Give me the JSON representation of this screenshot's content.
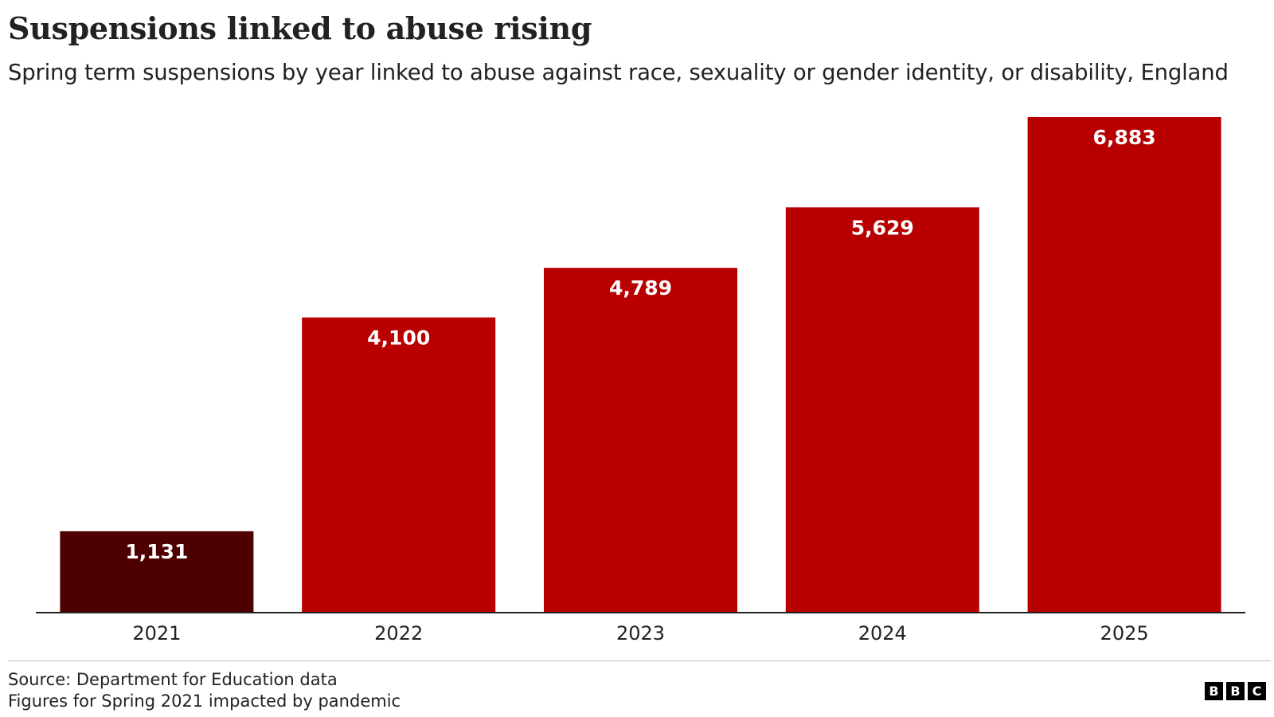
{
  "title": "Suspensions linked to abuse rising",
  "subtitle": "Spring term suspensions by year linked to abuse against race, sexuality or gender identity, or disability, England",
  "footer": {
    "source": "Source: Department for Education data",
    "note": "Figures for Spring 2021 impacted by pandemic"
  },
  "logo": {
    "letters": [
      "B",
      "B",
      "C"
    ]
  },
  "colors": {
    "bar": "#b80000",
    "bar_highlight": "#4e0000",
    "axis": "#222222"
  },
  "chart_data": {
    "type": "bar",
    "title": "Suspensions linked to abuse rising",
    "subtitle": "Spring term suspensions by year linked to abuse against race, sexuality or gender identity, or disability, England",
    "categories": [
      "2021",
      "2022",
      "2023",
      "2024",
      "2025"
    ],
    "values": [
      1131,
      4100,
      4789,
      5629,
      6883
    ],
    "value_labels": [
      "1,131",
      "4,100",
      "4,789",
      "5,629",
      "6,883"
    ],
    "highlighted_category": "2021",
    "xlabel": "",
    "ylabel": "",
    "ylim": [
      0,
      6883
    ],
    "grid": false,
    "legend": "none"
  }
}
